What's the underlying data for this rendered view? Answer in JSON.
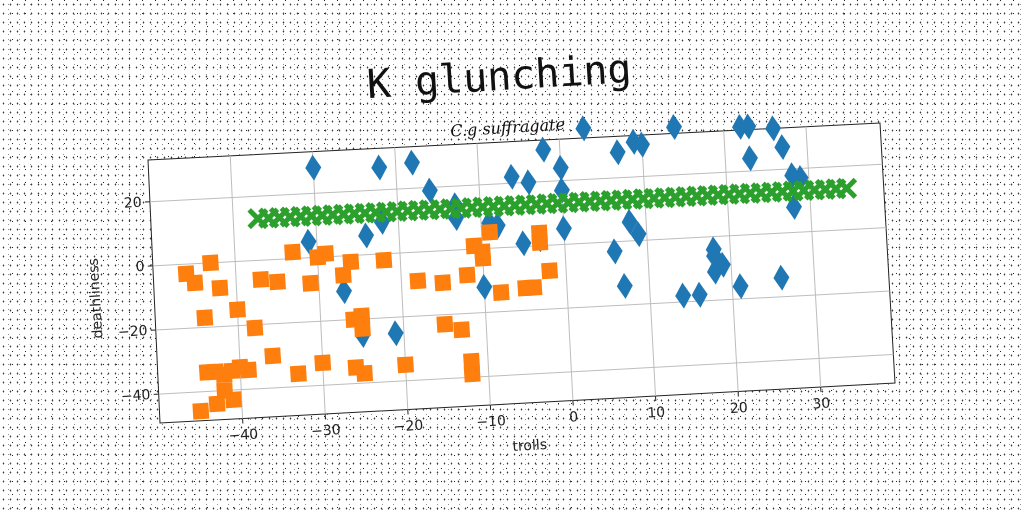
{
  "chart_data": {
    "type": "scatter",
    "title": "K glunching",
    "subtitle": "C.g suffragate",
    "xlabel": "trolls",
    "ylabel": "deathliness",
    "xlim": [
      -50,
      39
    ],
    "ylim": [
      -49,
      33
    ],
    "xticks": [
      -40,
      -30,
      -20,
      -10,
      0,
      10,
      20,
      30
    ],
    "yticks": [
      -40,
      -20,
      0,
      20
    ],
    "grid": true,
    "colors": {
      "blue": "#1f77b4",
      "orange": "#ff7f0e",
      "green": "#2ca02c"
    },
    "series": [
      {
        "marker": "diamond",
        "color": "#1f77b4",
        "points": [
          [
            -30,
            28
          ],
          [
            -22,
            27
          ],
          [
            -18,
            28
          ],
          [
            -16,
            19
          ],
          [
            -13,
            14
          ],
          [
            -6,
            22
          ],
          [
            -4,
            20
          ],
          [
            -2,
            30
          ],
          [
            0,
            24
          ],
          [
            0,
            17
          ],
          [
            3,
            36
          ],
          [
            7,
            28
          ],
          [
            9,
            31
          ],
          [
            10,
            30
          ],
          [
            14,
            35
          ],
          [
            22,
            34
          ],
          [
            23,
            34
          ],
          [
            23,
            24
          ],
          [
            26,
            33
          ],
          [
            27,
            27
          ],
          [
            28,
            18
          ],
          [
            29,
            17
          ],
          [
            28,
            8
          ],
          [
            -31,
            5
          ],
          [
            -24,
            6
          ],
          [
            -22,
            10
          ],
          [
            -13,
            10
          ],
          [
            -9,
            8
          ],
          [
            -8,
            7
          ],
          [
            -5,
            1
          ],
          [
            -3,
            2
          ],
          [
            0,
            5
          ],
          [
            6,
            -3
          ],
          [
            8,
            6
          ],
          [
            9,
            2
          ],
          [
            18,
            -4
          ],
          [
            18,
            -6
          ],
          [
            19,
            -9
          ],
          [
            18,
            -11
          ],
          [
            7,
            -14
          ],
          [
            14,
            -18
          ],
          [
            16,
            -18
          ],
          [
            21,
            -16
          ],
          [
            26,
            -14
          ],
          [
            -27,
            -11
          ],
          [
            -25,
            -25
          ],
          [
            -21,
            -25
          ],
          [
            -10,
            -12
          ]
        ]
      },
      {
        "marker": "square",
        "color": "#ff7f0e",
        "points": [
          [
            -46,
            -3
          ],
          [
            -45,
            -6
          ],
          [
            -43,
            0
          ],
          [
            -42,
            -8
          ],
          [
            -44,
            -17
          ],
          [
            -40,
            -15
          ],
          [
            -37,
            -6
          ],
          [
            -35,
            -7
          ],
          [
            -33,
            2
          ],
          [
            -31,
            -8
          ],
          [
            -30,
            0
          ],
          [
            -29,
            1
          ],
          [
            -27,
            -6
          ],
          [
            -26,
            -2
          ],
          [
            -22,
            -2
          ],
          [
            -18,
            -9
          ],
          [
            -15,
            -10
          ],
          [
            -12,
            -8
          ],
          [
            -11,
            1
          ],
          [
            -10,
            -1
          ],
          [
            -10,
            -3
          ],
          [
            -9,
            5
          ],
          [
            -8,
            -14
          ],
          [
            -5,
            -13
          ],
          [
            -4,
            -13
          ],
          [
            -3,
            4
          ],
          [
            -3,
            1
          ],
          [
            -2,
            -8
          ],
          [
            -38,
            -21
          ],
          [
            -36,
            -30
          ],
          [
            -33,
            -36
          ],
          [
            -30,
            -33
          ],
          [
            -26,
            -35
          ],
          [
            -25,
            -37
          ],
          [
            -26,
            -20
          ],
          [
            -25,
            -19
          ],
          [
            -25,
            -23
          ],
          [
            -20,
            -35
          ],
          [
            -15,
            -23
          ],
          [
            -13,
            -25
          ],
          [
            -12,
            -35
          ],
          [
            -12,
            -39
          ],
          [
            -44,
            -34
          ],
          [
            -43,
            -34
          ],
          [
            -42,
            -35
          ],
          [
            -41,
            -34
          ],
          [
            -40,
            -33
          ],
          [
            -39,
            -34
          ],
          [
            -42,
            -40
          ],
          [
            -41,
            -43
          ],
          [
            -45,
            -46
          ],
          [
            -43,
            -44
          ]
        ]
      },
      {
        "marker": "x",
        "color": "#2ca02c",
        "x_start": -37,
        "x_end": 35,
        "x_step": 1.3,
        "y": 13
      }
    ]
  }
}
